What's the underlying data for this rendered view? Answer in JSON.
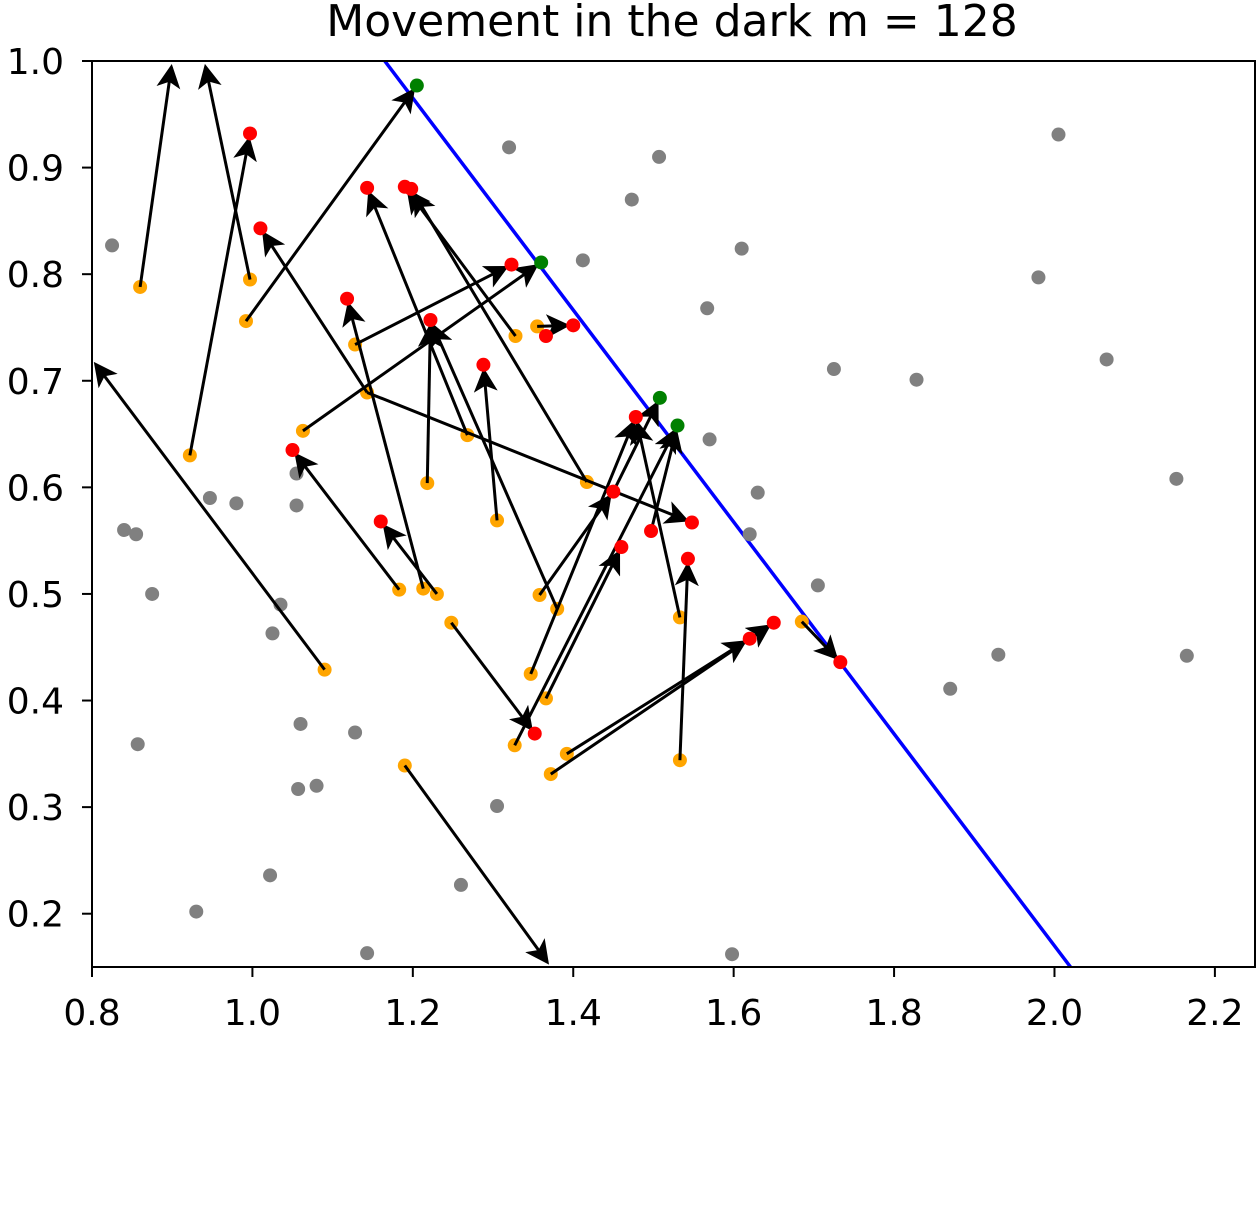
{
  "chart_data": {
    "type": "scatter",
    "title": "Movement in the dark m = 128",
    "xlabel": "",
    "ylabel": "",
    "xlim": [
      0.8,
      2.25
    ],
    "ylim": [
      0.15,
      1.0
    ],
    "xticks": [
      "0.8",
      "1.0",
      "1.2",
      "1.4",
      "1.6",
      "1.8",
      "2.0",
      "2.2"
    ],
    "xtick_values": [
      0.8,
      1.0,
      1.2,
      1.4,
      1.6,
      1.8,
      2.0,
      2.2
    ],
    "yticks": [
      "0.2",
      "0.3",
      "0.4",
      "0.5",
      "0.6",
      "0.7",
      "0.8",
      "0.9",
      "1.0"
    ],
    "ytick_values": [
      0.2,
      0.3,
      0.4,
      0.5,
      0.6,
      0.7,
      0.8,
      0.9,
      1.0
    ],
    "grid": false,
    "colors": {
      "gray": "#808080",
      "orange": "#ffa500",
      "red": "#ff0000",
      "green": "#008000",
      "line": "#0000ff",
      "arrow": "#000000"
    },
    "boundary_line": [
      [
        1.165,
        1.0
      ],
      [
        2.02,
        0.15
      ]
    ],
    "gray_points": [
      [
        0.825,
        0.827
      ],
      [
        0.84,
        0.56
      ],
      [
        0.855,
        0.556
      ],
      [
        0.875,
        0.5
      ],
      [
        0.857,
        0.359
      ],
      [
        0.947,
        0.59
      ],
      [
        0.98,
        0.585
      ],
      [
        0.93,
        0.202
      ],
      [
        1.055,
        0.613
      ],
      [
        1.055,
        0.583
      ],
      [
        1.035,
        0.49
      ],
      [
        1.025,
        0.463
      ],
      [
        1.06,
        0.378
      ],
      [
        1.057,
        0.317
      ],
      [
        1.08,
        0.32
      ],
      [
        1.022,
        0.236
      ],
      [
        1.128,
        0.37
      ],
      [
        1.143,
        0.163
      ],
      [
        1.26,
        0.227
      ],
      [
        1.305,
        0.301
      ],
      [
        1.32,
        0.919
      ],
      [
        1.473,
        0.87
      ],
      [
        1.507,
        0.91
      ],
      [
        1.412,
        0.813
      ],
      [
        1.61,
        0.824
      ],
      [
        1.567,
        0.768
      ],
      [
        1.725,
        0.711
      ],
      [
        1.828,
        0.701
      ],
      [
        1.98,
        0.797
      ],
      [
        2.005,
        0.931
      ],
      [
        2.065,
        0.72
      ],
      [
        2.152,
        0.608
      ],
      [
        2.165,
        0.442
      ],
      [
        1.93,
        0.443
      ],
      [
        1.87,
        0.411
      ],
      [
        1.705,
        0.508
      ],
      [
        1.63,
        0.595
      ],
      [
        1.62,
        0.556
      ],
      [
        1.57,
        0.645
      ],
      [
        1.598,
        0.162
      ]
    ],
    "orange_points": [
      [
        0.86,
        0.788
      ],
      [
        0.922,
        0.63
      ],
      [
        0.997,
        0.795
      ],
      [
        0.992,
        0.756
      ],
      [
        1.09,
        0.429
      ],
      [
        1.063,
        0.653
      ],
      [
        1.128,
        0.734
      ],
      [
        1.143,
        0.689
      ],
      [
        1.218,
        0.604
      ],
      [
        1.183,
        0.504
      ],
      [
        1.213,
        0.505
      ],
      [
        1.23,
        0.5
      ],
      [
        1.248,
        0.473
      ],
      [
        1.268,
        0.649
      ],
      [
        1.305,
        0.569
      ],
      [
        1.19,
        0.339
      ],
      [
        1.328,
        0.742
      ],
      [
        1.355,
        0.751
      ],
      [
        1.358,
        0.499
      ],
      [
        1.38,
        0.486
      ],
      [
        1.347,
        0.425
      ],
      [
        1.366,
        0.402
      ],
      [
        1.327,
        0.358
      ],
      [
        1.392,
        0.35
      ],
      [
        1.372,
        0.331
      ],
      [
        1.417,
        0.605
      ],
      [
        1.533,
        0.478
      ],
      [
        1.533,
        0.344
      ],
      [
        1.685,
        0.474
      ]
    ],
    "red_points": [
      [
        0.997,
        0.932
      ],
      [
        1.01,
        0.843
      ],
      [
        1.143,
        0.881
      ],
      [
        1.19,
        0.882
      ],
      [
        1.198,
        0.88
      ],
      [
        1.118,
        0.777
      ],
      [
        1.222,
        0.757
      ],
      [
        1.288,
        0.715
      ],
      [
        1.05,
        0.635
      ],
      [
        1.16,
        0.568
      ],
      [
        1.323,
        0.809
      ],
      [
        1.366,
        0.742
      ],
      [
        1.4,
        0.752
      ],
      [
        1.45,
        0.596
      ],
      [
        1.478,
        0.666
      ],
      [
        1.46,
        0.544
      ],
      [
        1.497,
        0.559
      ],
      [
        1.548,
        0.567
      ],
      [
        1.543,
        0.533
      ],
      [
        1.352,
        0.369
      ],
      [
        1.62,
        0.458
      ],
      [
        1.65,
        0.473
      ],
      [
        1.733,
        0.436
      ]
    ],
    "green_points": [
      [
        1.205,
        0.977
      ],
      [
        1.36,
        0.811
      ],
      [
        1.508,
        0.684
      ],
      [
        1.53,
        0.658
      ]
    ],
    "arrows": [
      [
        0.86,
        0.788,
        0.9,
        1.0
      ],
      [
        0.922,
        0.63,
        0.997,
        0.932
      ],
      [
        0.997,
        0.795,
        0.94,
        1.0
      ],
      [
        0.992,
        0.756,
        1.205,
        0.977
      ],
      [
        1.09,
        0.429,
        0.8,
        0.72
      ],
      [
        1.063,
        0.653,
        1.36,
        0.811
      ],
      [
        1.128,
        0.734,
        1.323,
        0.809
      ],
      [
        1.143,
        0.689,
        1.01,
        0.843
      ],
      [
        1.143,
        0.689,
        1.548,
        0.567
      ],
      [
        1.218,
        0.604,
        1.222,
        0.757
      ],
      [
        1.183,
        0.504,
        1.05,
        0.635
      ],
      [
        1.213,
        0.505,
        1.118,
        0.777
      ],
      [
        1.23,
        0.5,
        1.16,
        0.568
      ],
      [
        1.248,
        0.473,
        1.352,
        0.369
      ],
      [
        1.268,
        0.649,
        1.143,
        0.881
      ],
      [
        1.305,
        0.569,
        1.288,
        0.715
      ],
      [
        1.19,
        0.339,
        1.372,
        0.15
      ],
      [
        1.328,
        0.742,
        1.19,
        0.882
      ],
      [
        1.355,
        0.751,
        1.4,
        0.752
      ],
      [
        1.358,
        0.499,
        1.45,
        0.596
      ],
      [
        1.38,
        0.486,
        1.222,
        0.757
      ],
      [
        1.347,
        0.425,
        1.478,
        0.666
      ],
      [
        1.366,
        0.402,
        1.46,
        0.544
      ],
      [
        1.327,
        0.358,
        1.53,
        0.658
      ],
      [
        1.392,
        0.35,
        1.62,
        0.458
      ],
      [
        1.372,
        0.331,
        1.65,
        0.473
      ],
      [
        1.417,
        0.605,
        1.198,
        0.88
      ],
      [
        1.533,
        0.478,
        1.478,
        0.666
      ],
      [
        1.533,
        0.344,
        1.543,
        0.533
      ],
      [
        1.685,
        0.474,
        1.733,
        0.436
      ],
      [
        1.45,
        0.596,
        1.508,
        0.684
      ],
      [
        1.497,
        0.559,
        1.53,
        0.658
      ]
    ]
  }
}
